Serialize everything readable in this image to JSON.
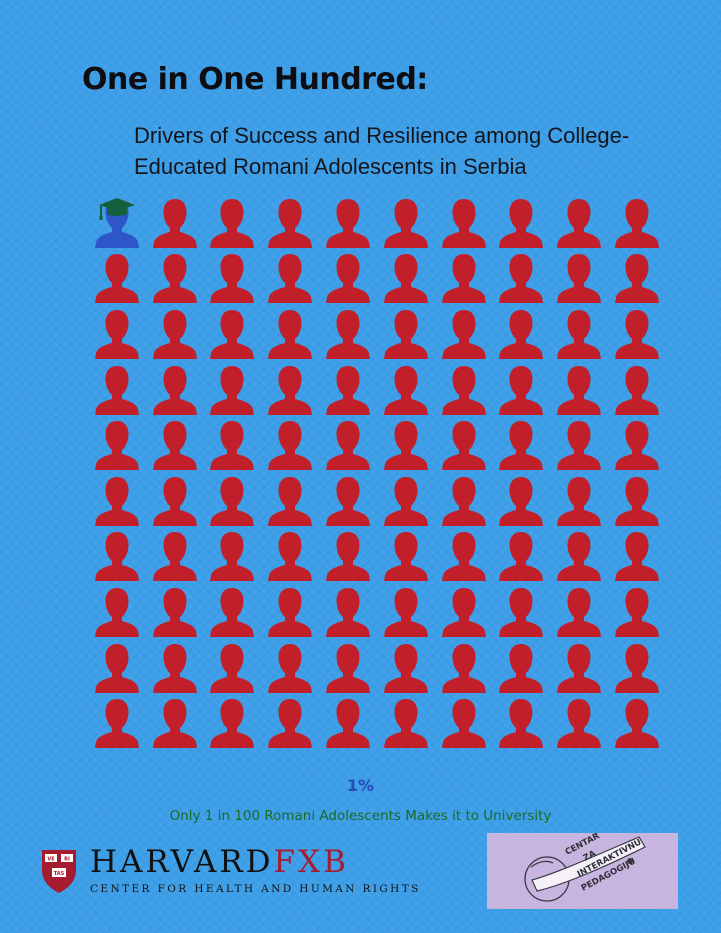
{
  "header": {
    "title": "One in One Hundred:",
    "subtitle": "Drivers of Success and Resilience among College-Educated Romani Adolescents in Serbia"
  },
  "pictogram": {
    "total": 100,
    "highlighted": 1,
    "rows": 10,
    "columns": 10,
    "colors": {
      "person": "#c1202b",
      "highlighted": "#2e56c8",
      "cap": "#14603a"
    },
    "highlighted_icon": "graduate-person-icon",
    "person_icon": "person-icon"
  },
  "stat": {
    "value": "1%"
  },
  "caption": {
    "text": "Only 1 in 100 Romani Adolescents Makes it to University"
  },
  "harvard": {
    "name_main": "HARVARD",
    "name_accent": "FXB",
    "subtitle": "CENTER FOR HEALTH AND HUMAN RIGHTS",
    "shield_text": [
      "VE",
      "RI",
      "TAS"
    ]
  },
  "cip": {
    "lines": [
      "CENTAR",
      "ZA",
      "INTERAKTIVNU",
      "PEDAGOGIJU"
    ]
  }
}
